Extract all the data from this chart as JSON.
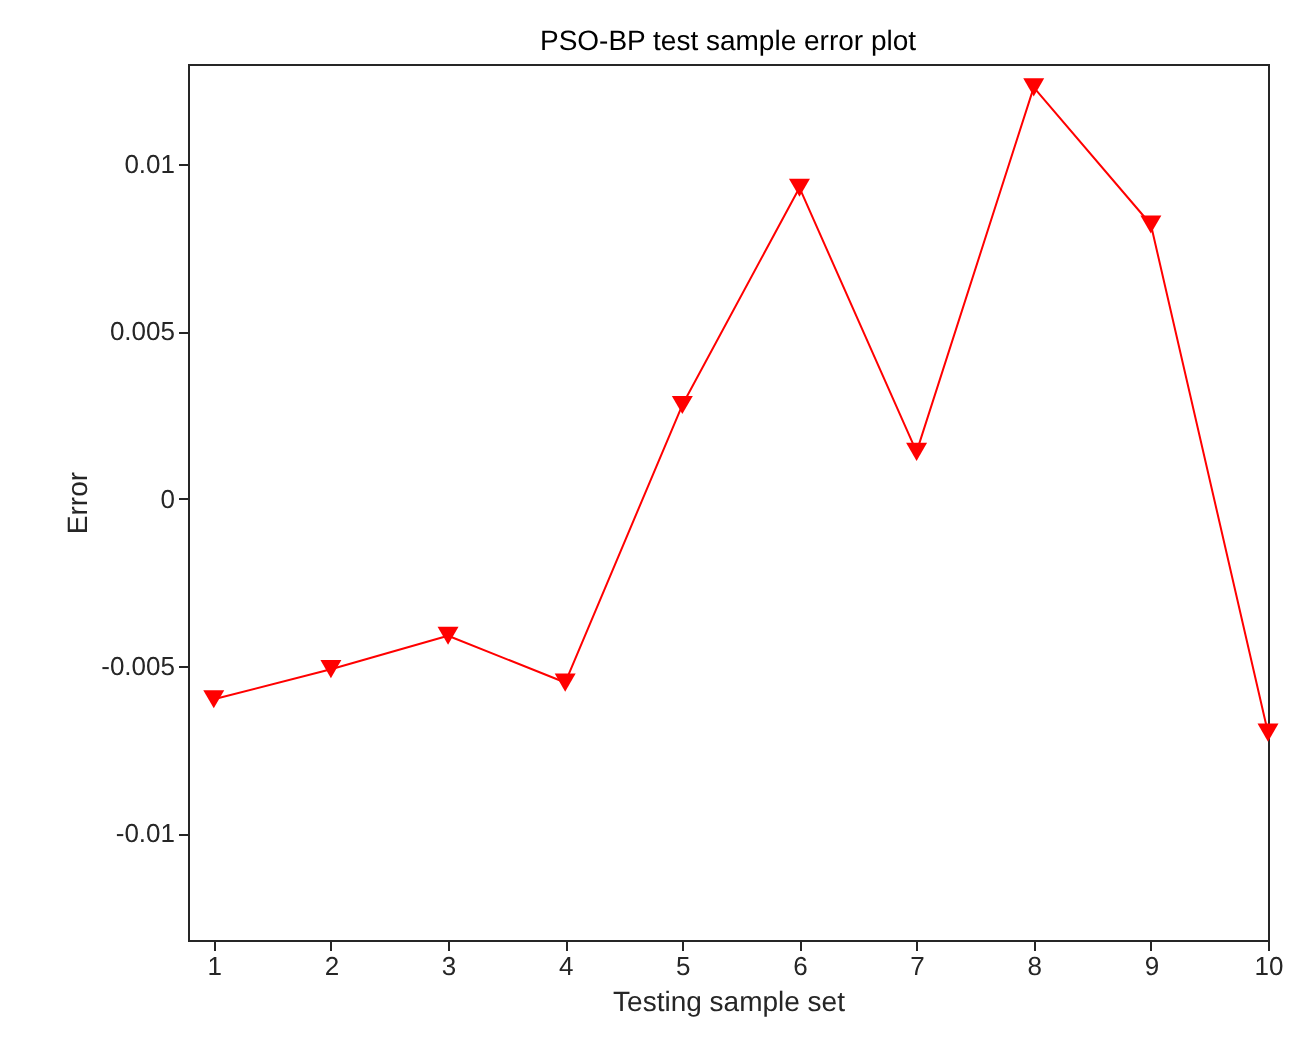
{
  "chart_data": {
    "type": "line",
    "title": "PSO-BP test sample error plot",
    "xlabel": "Testing sample set",
    "ylabel": "Error",
    "x": [
      1,
      2,
      3,
      4,
      5,
      6,
      7,
      8,
      9,
      10
    ],
    "series": [
      {
        "color": "#ff0000",
        "values": [
          -0.006,
          -0.0051,
          -0.0041,
          -0.0055,
          0.0028,
          0.0093,
          0.0014,
          0.0123,
          0.0082,
          -0.007
        ]
      }
    ],
    "xlim": [
      0.78,
      10
    ],
    "xticks": [
      1,
      2,
      3,
      4,
      5,
      6,
      7,
      8,
      9,
      10
    ],
    "ylim": [
      -0.0132,
      0.013
    ],
    "yticks": [
      -0.01,
      -0.005,
      0,
      0.005,
      0.01
    ],
    "marker": "triangle",
    "line_style": "solid",
    "grid": false
  }
}
